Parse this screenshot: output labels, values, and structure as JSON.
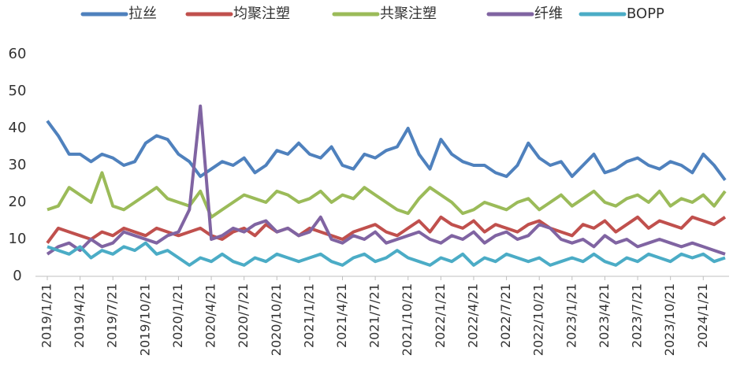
{
  "chart_data": {
    "type": "line",
    "categories": [
      "2019/1/21",
      null,
      null,
      "2019/4/21",
      null,
      null,
      "2019/7/21",
      null,
      null,
      "2019/10/21",
      null,
      null,
      "2020/1/21",
      null,
      null,
      "2020/4/21",
      null,
      null,
      "2020/7/21",
      null,
      null,
      "2020/10/21",
      null,
      null,
      "2021/1/21",
      null,
      null,
      "2021/4/21",
      null,
      null,
      "2021/7/21",
      null,
      null,
      "2021/10/21",
      null,
      null,
      "2022/1/21",
      null,
      null,
      "2022/4/21",
      null,
      null,
      "2022/7/21",
      null,
      null,
      "2022/10/21",
      null,
      null,
      "2023/1/21",
      null,
      null,
      "2023/4/21",
      null,
      null,
      "2023/7/21",
      null,
      null,
      "2023/10/21",
      null,
      null,
      "2024/1/21",
      null,
      null
    ],
    "series": [
      {
        "name": "拉丝",
        "color": "#4f81bd",
        "values": [
          42,
          38,
          33,
          33,
          31,
          33,
          32,
          30,
          31,
          36,
          38,
          37,
          33,
          31,
          27,
          29,
          31,
          30,
          32,
          28,
          30,
          34,
          33,
          36,
          33,
          32,
          35,
          30,
          29,
          33,
          32,
          34,
          35,
          40,
          33,
          29,
          37,
          33,
          31,
          30,
          30,
          28,
          27,
          30,
          36,
          32,
          30,
          31,
          27,
          30,
          33,
          28,
          29,
          31,
          32,
          30,
          29,
          31,
          30,
          28,
          33,
          30,
          26
        ]
      },
      {
        "name": "均聚注塑",
        "color": "#c0504d",
        "values": [
          9,
          13,
          12,
          11,
          10,
          12,
          11,
          13,
          12,
          11,
          13,
          12,
          11,
          12,
          13,
          11,
          10,
          12,
          13,
          11,
          14,
          12,
          13,
          11,
          13,
          12,
          11,
          10,
          12,
          13,
          14,
          12,
          11,
          13,
          15,
          12,
          16,
          14,
          13,
          15,
          12,
          14,
          13,
          12,
          14,
          15,
          13,
          12,
          11,
          14,
          13,
          15,
          12,
          14,
          16,
          13,
          15,
          14,
          13,
          16,
          15,
          14,
          16
        ]
      },
      {
        "name": "共聚注塑",
        "color": "#9bbb59",
        "values": [
          18,
          19,
          24,
          22,
          20,
          28,
          19,
          18,
          20,
          22,
          24,
          21,
          20,
          19,
          23,
          16,
          18,
          20,
          22,
          21,
          20,
          23,
          22,
          20,
          21,
          23,
          20,
          22,
          21,
          24,
          22,
          20,
          18,
          17,
          21,
          24,
          22,
          20,
          17,
          18,
          20,
          19,
          18,
          20,
          21,
          18,
          20,
          22,
          19,
          21,
          23,
          20,
          19,
          21,
          22,
          20,
          23,
          19,
          21,
          20,
          22,
          19,
          23
        ]
      },
      {
        "name": "纤维",
        "color": "#8064a2",
        "values": [
          6,
          8,
          9,
          7,
          10,
          8,
          9,
          12,
          11,
          10,
          9,
          11,
          12,
          18,
          46,
          10,
          11,
          13,
          12,
          14,
          15,
          12,
          13,
          11,
          12,
          16,
          10,
          9,
          11,
          10,
          12,
          9,
          10,
          11,
          12,
          10,
          9,
          11,
          10,
          12,
          9,
          11,
          12,
          10,
          11,
          14,
          13,
          10,
          9,
          10,
          8,
          11,
          9,
          10,
          8,
          9,
          10,
          9,
          8,
          9,
          8,
          7,
          6
        ]
      },
      {
        "name": "BOPP",
        "color": "#4bacc6",
        "values": [
          8,
          7,
          6,
          8,
          5,
          7,
          6,
          8,
          7,
          9,
          6,
          7,
          5,
          3,
          5,
          4,
          6,
          4,
          3,
          5,
          4,
          6,
          5,
          4,
          5,
          6,
          4,
          3,
          5,
          6,
          4,
          5,
          7,
          5,
          4,
          3,
          5,
          4,
          6,
          3,
          5,
          4,
          6,
          5,
          4,
          5,
          3,
          4,
          5,
          4,
          6,
          4,
          3,
          5,
          4,
          6,
          5,
          4,
          6,
          5,
          6,
          4,
          5
        ]
      }
    ],
    "ylim": [
      0,
      60
    ],
    "yticks": [
      0,
      10,
      20,
      30,
      40,
      50,
      60
    ]
  }
}
